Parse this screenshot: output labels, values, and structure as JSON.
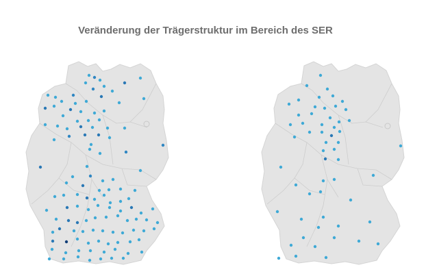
{
  "title": "Veränderung der Trägerstruktur im Bereich des SER",
  "colors": {
    "background": "#ffffff",
    "land": "#e4e4e4",
    "border": "#cdcdcd",
    "dot_light": "#3fa9d6",
    "dot_mid": "#2a78b5",
    "dot_dark": "#123f78"
  },
  "maps": [
    {
      "name": "left-map",
      "points": [
        [
          130,
          110,
          1
        ],
        [
          138,
          113,
          0
        ],
        [
          146,
          117,
          1
        ],
        [
          125,
          121,
          1
        ],
        [
          182,
          121,
          2
        ],
        [
          205,
          114,
          1
        ],
        [
          152,
          126,
          1
        ],
        [
          136,
          130,
          0
        ],
        [
          164,
          133,
          1
        ],
        [
          70,
          139,
          1
        ],
        [
          81,
          142,
          1
        ],
        [
          107,
          139,
          0
        ],
        [
          90,
          148,
          1
        ],
        [
          110,
          151,
          1
        ],
        [
          126,
          148,
          1
        ],
        [
          148,
          141,
          2
        ],
        [
          174,
          150,
          1
        ],
        [
          210,
          144,
          1
        ],
        [
          66,
          158,
          2
        ],
        [
          79,
          155,
          1
        ],
        [
          103,
          160,
          2
        ],
        [
          118,
          163,
          1
        ],
        [
          138,
          165,
          1
        ],
        [
          152,
          162,
          1
        ],
        [
          92,
          169,
          1
        ],
        [
          113,
          177,
          1
        ],
        [
          129,
          176,
          1
        ],
        [
          145,
          175,
          1
        ],
        [
          66,
          182,
          1
        ],
        [
          84,
          184,
          1
        ],
        [
          98,
          188,
          1
        ],
        [
          118,
          185,
          2
        ],
        [
          135,
          186,
          1
        ],
        [
          157,
          187,
          1
        ],
        [
          182,
          187,
          1
        ],
        [
          101,
          199,
          0
        ],
        [
          124,
          197,
          2
        ],
        [
          144,
          197,
          2
        ],
        [
          160,
          201,
          1
        ],
        [
          79,
          204,
          1
        ],
        [
          133,
          211,
          1
        ],
        [
          131,
          218,
          1
        ],
        [
          146,
          224,
          1
        ],
        [
          184,
          222,
          0
        ],
        [
          238,
          212,
          0
        ],
        [
          59,
          244,
          2
        ],
        [
          127,
          243,
          1
        ],
        [
          205,
          249,
          1
        ],
        [
          106,
          258,
          1
        ],
        [
          132,
          257,
          0
        ],
        [
          150,
          264,
          1
        ],
        [
          165,
          262,
          1
        ],
        [
          97,
          267,
          1
        ],
        [
          121,
          271,
          2
        ],
        [
          145,
          278,
          1
        ],
        [
          159,
          277,
          1
        ],
        [
          176,
          276,
          1
        ],
        [
          197,
          278,
          1
        ],
        [
          80,
          287,
          1
        ],
        [
          93,
          285,
          1
        ],
        [
          113,
          284,
          1
        ],
        [
          127,
          289,
          2
        ],
        [
          138,
          291,
          1
        ],
        [
          152,
          285,
          1
        ],
        [
          161,
          296,
          1
        ],
        [
          176,
          294,
          1
        ],
        [
          188,
          290,
          1
        ],
        [
          68,
          307,
          1
        ],
        [
          98,
          303,
          2
        ],
        [
          113,
          301,
          1
        ],
        [
          129,
          306,
          1
        ],
        [
          143,
          300,
          1
        ],
        [
          160,
          303,
          1
        ],
        [
          176,
          308,
          1
        ],
        [
          192,
          303,
          2
        ],
        [
          206,
          311,
          1
        ],
        [
          223,
          305,
          1
        ],
        [
          82,
          320,
          1
        ],
        [
          100,
          322,
          2
        ],
        [
          113,
          325,
          2
        ],
        [
          126,
          322,
          1
        ],
        [
          139,
          318,
          1
        ],
        [
          155,
          317,
          1
        ],
        [
          172,
          315,
          1
        ],
        [
          186,
          322,
          1
        ],
        [
          199,
          320,
          1
        ],
        [
          214,
          321,
          1
        ],
        [
          230,
          325,
          1
        ],
        [
          77,
          339,
          1
        ],
        [
          87,
          334,
          2
        ],
        [
          108,
          337,
          1
        ],
        [
          121,
          338,
          1
        ],
        [
          136,
          336,
          1
        ],
        [
          150,
          337,
          1
        ],
        [
          165,
          339,
          1
        ],
        [
          179,
          340,
          1
        ],
        [
          195,
          336,
          1
        ],
        [
          210,
          337,
          1
        ],
        [
          225,
          334,
          1
        ],
        [
          77,
          352,
          2
        ],
        [
          97,
          353,
          3
        ],
        [
          113,
          349,
          1
        ],
        [
          129,
          355,
          1
        ],
        [
          144,
          352,
          1
        ],
        [
          158,
          356,
          1
        ],
        [
          172,
          354,
          1
        ],
        [
          190,
          353,
          1
        ],
        [
          203,
          350,
          1
        ],
        [
          76,
          364,
          1
        ],
        [
          96,
          369,
          1
        ],
        [
          115,
          366,
          1
        ],
        [
          132,
          366,
          1
        ],
        [
          152,
          368,
          1
        ],
        [
          168,
          364,
          1
        ],
        [
          187,
          370,
          1
        ],
        [
          207,
          368,
          1
        ],
        [
          72,
          378,
          1
        ],
        [
          93,
          378,
          1
        ],
        [
          114,
          375,
          1
        ],
        [
          131,
          380,
          1
        ],
        [
          147,
          378,
          1
        ],
        [
          163,
          377,
          1
        ],
        [
          180,
          377,
          1
        ]
      ]
    },
    {
      "name": "right-map",
      "points": [
        [
          468,
          110,
          1
        ],
        [
          448,
          125,
          1
        ],
        [
          436,
          146,
          1
        ],
        [
          422,
          152,
          1
        ],
        [
          478,
          130,
          1
        ],
        [
          466,
          142,
          1
        ],
        [
          486,
          140,
          1
        ],
        [
          500,
          148,
          1
        ],
        [
          460,
          156,
          1
        ],
        [
          474,
          158,
          1
        ],
        [
          490,
          155,
          1
        ],
        [
          505,
          160,
          1
        ],
        [
          436,
          168,
          1
        ],
        [
          455,
          166,
          1
        ],
        [
          482,
          172,
          1
        ],
        [
          495,
          178,
          1
        ],
        [
          510,
          176,
          1
        ],
        [
          424,
          182,
          1
        ],
        [
          442,
          180,
          1
        ],
        [
          470,
          182,
          1
        ],
        [
          488,
          186,
          1
        ],
        [
          452,
          193,
          1
        ],
        [
          470,
          193,
          1
        ],
        [
          484,
          198,
          2
        ],
        [
          496,
          192,
          1
        ],
        [
          430,
          200,
          1
        ],
        [
          476,
          208,
          1
        ],
        [
          494,
          208,
          1
        ],
        [
          472,
          220,
          1
        ],
        [
          488,
          218,
          1
        ],
        [
          475,
          232,
          2
        ],
        [
          494,
          233,
          1
        ],
        [
          585,
          213,
          1
        ],
        [
          410,
          244,
          1
        ],
        [
          545,
          256,
          1
        ],
        [
          432,
          270,
          1
        ],
        [
          472,
          264,
          1
        ],
        [
          488,
          262,
          1
        ],
        [
          452,
          283,
          1
        ],
        [
          468,
          280,
          1
        ],
        [
          512,
          292,
          1
        ],
        [
          405,
          309,
          1
        ],
        [
          472,
          317,
          1
        ],
        [
          540,
          324,
          1
        ],
        [
          440,
          320,
          1
        ],
        [
          465,
          332,
          1
        ],
        [
          425,
          358,
          1
        ],
        [
          443,
          347,
          1
        ],
        [
          460,
          360,
          1
        ],
        [
          488,
          347,
          1
        ],
        [
          494,
          330,
          1
        ],
        [
          524,
          352,
          1
        ],
        [
          552,
          356,
          1
        ],
        [
          407,
          377,
          1
        ],
        [
          432,
          374,
          1
        ],
        [
          476,
          376,
          1
        ]
      ]
    }
  ]
}
